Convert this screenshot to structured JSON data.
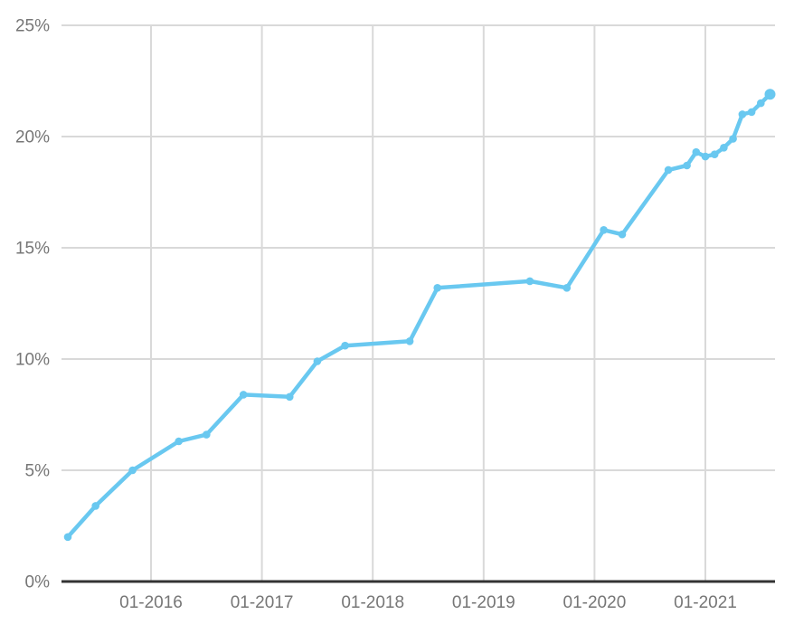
{
  "chart_data": {
    "type": "line",
    "x": [
      "04-2015",
      "07-2015",
      "11-2015",
      "04-2016",
      "07-2016",
      "11-2016",
      "04-2017",
      "07-2017",
      "10-2017",
      "05-2018",
      "08-2018",
      "06-2019",
      "10-2019",
      "02-2020",
      "04-2020",
      "09-2020",
      "11-2020",
      "12-2020",
      "01-2021",
      "02-2021",
      "03-2021",
      "04-2021",
      "05-2021",
      "06-2021",
      "07-2021",
      "08-2021"
    ],
    "values": [
      2.0,
      3.4,
      5.0,
      6.3,
      6.6,
      8.4,
      8.3,
      9.9,
      10.6,
      10.8,
      13.2,
      13.5,
      13.2,
      15.8,
      15.6,
      18.5,
      18.7,
      19.3,
      19.1,
      19.2,
      19.5,
      19.9,
      21.0,
      21.1,
      21.5,
      21.9
    ],
    "xlabel": "",
    "ylabel": "",
    "y_unit": "%",
    "ylim": [
      0,
      25
    ],
    "grid": true,
    "legend": "none",
    "x_ticks": [
      "01-2016",
      "01-2017",
      "01-2018",
      "01-2019",
      "01-2020",
      "01-2021"
    ],
    "y_ticks": [
      {
        "value": 0,
        "label": "0%"
      },
      {
        "value": 5,
        "label": "5%"
      },
      {
        "value": 10,
        "label": "10%"
      },
      {
        "value": 15,
        "label": "15%"
      },
      {
        "value": 20,
        "label": "20%"
      },
      {
        "value": 25,
        "label": "25%"
      }
    ],
    "colors": {
      "line": "#69C8F0",
      "marker": "#69C8F0",
      "grid": "#D9D9D9",
      "axis": "#333333",
      "tick_label": "#767676",
      "background": "#FFFFFF"
    }
  }
}
